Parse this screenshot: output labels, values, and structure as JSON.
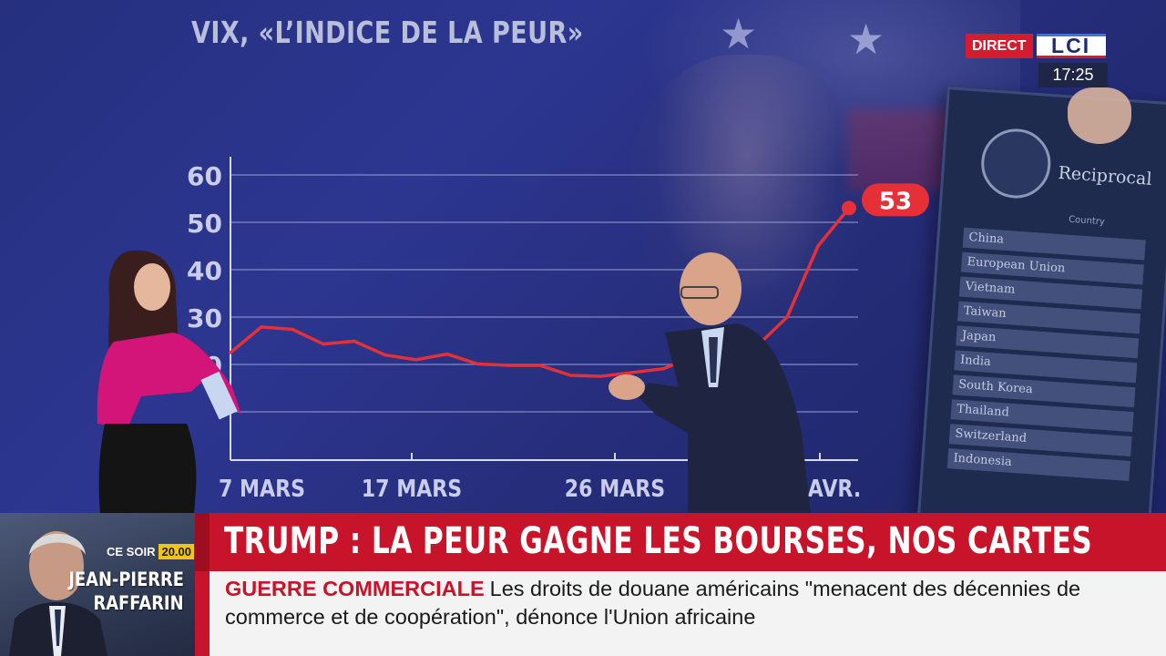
{
  "chart_data": {
    "type": "line",
    "title": "VIX, «L’INDICE DE LA PEUR»",
    "xlabel": "",
    "ylabel": "",
    "ylim": [
      10,
      60
    ],
    "yticks": [
      20,
      30,
      40,
      50,
      60
    ],
    "x_tick_labels": [
      "7 MARS",
      "17 MARS",
      "26 MARS",
      "AVR."
    ],
    "grid": true,
    "series": [
      {
        "values": [
          22.5,
          27.9,
          27.4,
          24.3,
          24.9,
          22.0,
          21.0,
          22.2,
          20.1,
          19.8,
          19.8,
          17.7,
          17.5,
          18.3,
          19.1,
          21.8,
          22.3,
          23.7,
          30.0,
          45.0,
          53.0
        ]
      }
    ],
    "end_label": "53",
    "line_color": "#e53038"
  },
  "broadcast": {
    "live_label": "DIRECT",
    "channel_logo": "LCI",
    "time": "17:25"
  },
  "promo": {
    "tonight_label": "CE SOIR",
    "time": "20.00",
    "guest_first_name": "JEAN-PIERRE",
    "guest_last_name": "RAFFARIN"
  },
  "headline": "TRUMP : LA PEUR GAGNE LES BOURSES, NOS CARTES",
  "ticker": {
    "category": "GUERRE COMMERCIALE",
    "text": "Les droits de douane américains \"menacent des décennies de commerce et de coopération\", dénonce l'Union africaine"
  },
  "background_document": {
    "title": "Reciprocal",
    "column_header": "Country",
    "countries": [
      "China",
      "European Union",
      "Vietnam",
      "Taiwan",
      "Japan",
      "India",
      "South Korea",
      "Thailand",
      "Switzerland",
      "Indonesia"
    ]
  },
  "colors": {
    "chart_text": "#c9cdea",
    "headline_bg": "#c8142a",
    "ticker_bg": "#f3f3f3"
  }
}
